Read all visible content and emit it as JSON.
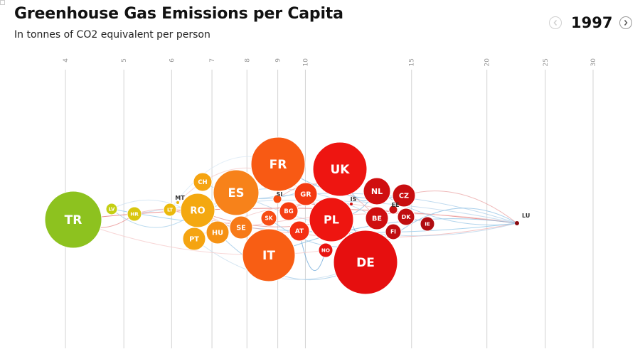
{
  "header": {
    "title": "Greenhouse Gas Emissions per Capita",
    "subtitle": "In tonnes of CO2 equivalent per person"
  },
  "year_nav": {
    "year": "1997",
    "prev_icon": "chevron-left-icon",
    "next_icon": "chevron-right-icon"
  },
  "chart_data": {
    "type": "scatter",
    "title": "Greenhouse Gas Emissions per Capita",
    "subtitle": "In tonnes of CO2 equivalent per person",
    "x_scale": "log",
    "xlim": [
      3.5,
      33
    ],
    "x_ticks": [
      "4",
      "5",
      "6",
      "7",
      "8",
      "9",
      "10",
      "15",
      "20",
      "25",
      "30"
    ],
    "grid": true,
    "points": [
      {
        "code": "TR",
        "value": 4.1,
        "size": 40,
        "color": "#8dc21f"
      },
      {
        "code": "LV",
        "value": 4.9,
        "size": 8,
        "color": "#c4cf14"
      },
      {
        "code": "HR",
        "value": 5.3,
        "size": 10,
        "color": "#d9c60f"
      },
      {
        "code": "LT",
        "value": 6.1,
        "size": 9,
        "color": "#ebb90c"
      },
      {
        "code": "MT",
        "value": 6.3,
        "size": 2,
        "color": "#ebb90c"
      },
      {
        "code": "RO",
        "value": 6.9,
        "size": 24,
        "color": "#f4a810"
      },
      {
        "code": "CH",
        "value": 7.0,
        "size": 13,
        "color": "#f5a411"
      },
      {
        "code": "PT",
        "value": 6.9,
        "size": 16,
        "color": "#f5a411"
      },
      {
        "code": "HU",
        "value": 7.4,
        "size": 16,
        "color": "#f69214"
      },
      {
        "code": "ES",
        "value": 8.1,
        "size": 32,
        "color": "#f7821a"
      },
      {
        "code": "SE",
        "value": 8.3,
        "size": 16,
        "color": "#f77a18"
      },
      {
        "code": "FR",
        "value": 9.3,
        "size": 38,
        "color": "#f85a14"
      },
      {
        "code": "IT",
        "value": 9.0,
        "size": 37,
        "color": "#f85e14"
      },
      {
        "code": "SI",
        "value": 9.4,
        "size": 6,
        "color": "#f64c12"
      },
      {
        "code": "SK",
        "value": 9.3,
        "size": 11,
        "color": "#f74d14"
      },
      {
        "code": "BG",
        "value": 9.9,
        "size": 13,
        "color": "#f53e12"
      },
      {
        "code": "GR",
        "value": 10.3,
        "size": 16,
        "color": "#f43a12"
      },
      {
        "code": "AT",
        "value": 10.3,
        "size": 14,
        "color": "#f42f12"
      },
      {
        "code": "UK",
        "value": 12.1,
        "size": 38,
        "color": "#ee1511"
      },
      {
        "code": "PL",
        "value": 11.6,
        "size": 31,
        "color": "#ee1510"
      },
      {
        "code": "NO",
        "value": 11.1,
        "size": 10,
        "color": "#e81410"
      },
      {
        "code": "DE",
        "value": 13.2,
        "size": 45,
        "color": "#e60f0f"
      },
      {
        "code": "IS",
        "value": 12.7,
        "size": 2,
        "color": "#d20f0f"
      },
      {
        "code": "NL",
        "value": 14.1,
        "size": 19,
        "color": "#d00f10"
      },
      {
        "code": "BE",
        "value": 14.0,
        "size": 16,
        "color": "#cf0f10"
      },
      {
        "code": "EE",
        "value": 14.7,
        "size": 6,
        "color": "#c80e10"
      },
      {
        "code": "CZ",
        "value": 15.2,
        "size": 16,
        "color": "#c80e10"
      },
      {
        "code": "DK",
        "value": 15.3,
        "size": 12,
        "color": "#c00e10"
      },
      {
        "code": "FI",
        "value": 14.8,
        "size": 11,
        "color": "#c00e10"
      },
      {
        "code": "IE",
        "value": 17.0,
        "size": 10,
        "color": "#b00c10"
      },
      {
        "code": "LU",
        "value": 23.1,
        "size": 3,
        "color": "#8a0a10"
      }
    ]
  }
}
